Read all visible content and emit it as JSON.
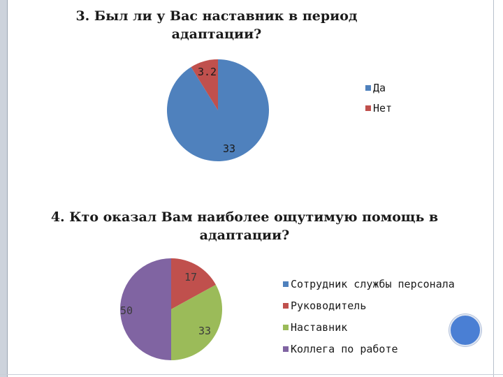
{
  "colors": {
    "blue": "#4f81bd",
    "red": "#c0504d",
    "green": "#9bbb59",
    "purple": "#8064a2"
  },
  "chart_data": [
    {
      "type": "pie",
      "title": "3. Был ли у Вас наставник в период адаптации?",
      "categories": [
        "Да",
        "Нет"
      ],
      "values": [
        33,
        3.2
      ],
      "data_labels": [
        "33",
        "3.2"
      ],
      "colors": [
        "#4f81bd",
        "#c0504d"
      ],
      "legend_position": "right"
    },
    {
      "type": "pie",
      "title": "4. Кто оказал Вам наиболее ощутимую помощь в адаптации?",
      "categories": [
        "Сотрудник службы персонала",
        "Руководитель",
        "Наставник",
        "Коллега по работе"
      ],
      "values": [
        0,
        17,
        33,
        50
      ],
      "data_labels": [
        "",
        "17",
        "33",
        "50"
      ],
      "colors": [
        "#4f81bd",
        "#c0504d",
        "#9bbb59",
        "#8064a2"
      ],
      "legend_position": "right"
    }
  ]
}
